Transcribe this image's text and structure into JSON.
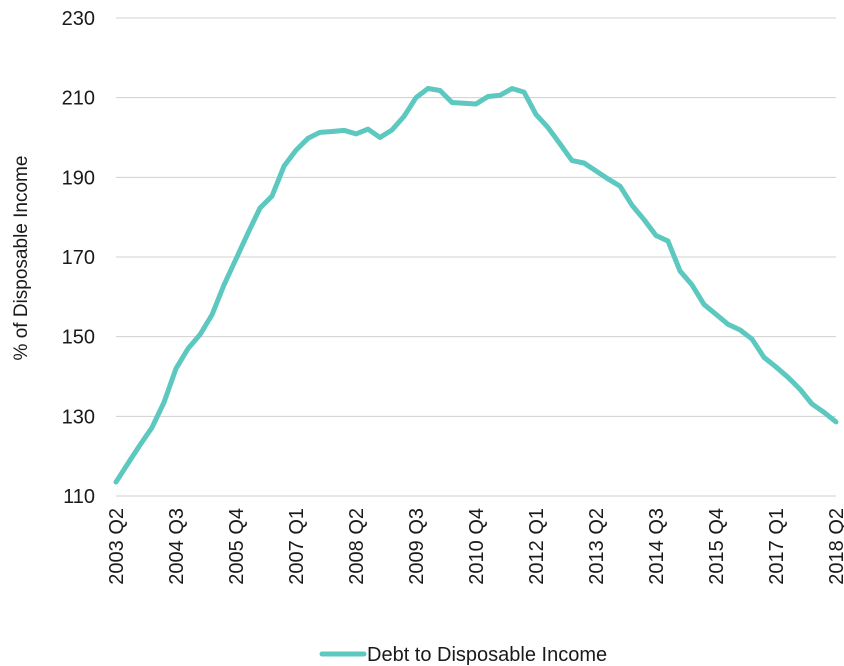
{
  "chart_data": {
    "type": "line",
    "title": "",
    "xlabel": "",
    "ylabel": "% of Disposable Income",
    "ylim": [
      110,
      230
    ],
    "yticks": [
      110,
      130,
      150,
      170,
      190,
      210,
      230
    ],
    "grid": true,
    "legend_position": "bottom-center",
    "x_tick_labels": [
      "2003 Q2",
      "2004 Q3",
      "2005 Q4",
      "2007 Q1",
      "2008 Q2",
      "2009 Q3",
      "2010 Q4",
      "2012 Q1",
      "2013 Q2",
      "2014 Q3",
      "2015 Q4",
      "2017 Q1",
      "2018 Q2"
    ],
    "x": [
      "2003 Q2",
      "2003 Q3",
      "2003 Q4",
      "2004 Q1",
      "2004 Q2",
      "2004 Q3",
      "2004 Q4",
      "2005 Q1",
      "2005 Q2",
      "2005 Q3",
      "2005 Q4",
      "2006 Q1",
      "2006 Q2",
      "2006 Q3",
      "2006 Q4",
      "2007 Q1",
      "2007 Q2",
      "2007 Q3",
      "2007 Q4",
      "2008 Q1",
      "2008 Q2",
      "2008 Q3",
      "2008 Q4",
      "2009 Q1",
      "2009 Q2",
      "2009 Q3",
      "2009 Q4",
      "2010 Q1",
      "2010 Q2",
      "2010 Q3",
      "2010 Q4",
      "2011 Q1",
      "2011 Q2",
      "2011 Q3",
      "2011 Q4",
      "2012 Q1",
      "2012 Q2",
      "2012 Q3",
      "2012 Q4",
      "2013 Q1",
      "2013 Q2",
      "2013 Q3",
      "2013 Q4",
      "2014 Q1",
      "2014 Q2",
      "2014 Q3",
      "2014 Q4",
      "2015 Q1",
      "2015 Q2",
      "2015 Q3",
      "2015 Q4",
      "2016 Q1",
      "2016 Q2",
      "2016 Q3",
      "2016 Q4",
      "2017 Q1",
      "2017 Q2",
      "2017 Q3",
      "2017 Q4",
      "2018 Q1",
      "2018 Q2"
    ],
    "series": [
      {
        "name": "Debt to Disposable Income",
        "color": "#5cc8bf",
        "values": [
          113.5,
          118.2,
          122.8,
          127.2,
          133.5,
          142.0,
          147.0,
          150.5,
          155.5,
          163.0,
          169.5,
          176.0,
          182.3,
          185.3,
          192.8,
          196.8,
          199.8,
          201.3,
          201.5,
          201.8,
          200.9,
          202.1,
          200.0,
          201.9,
          205.3,
          210.0,
          212.3,
          211.8,
          208.8,
          208.6,
          208.4,
          210.3,
          210.6,
          212.3,
          211.4,
          205.8,
          202.5,
          198.4,
          194.2,
          193.6,
          191.6,
          189.6,
          187.8,
          183.0,
          179.4,
          175.4,
          174.0,
          166.5,
          163.0,
          158.1,
          155.6,
          153.1,
          151.7,
          149.4,
          144.8,
          142.4,
          139.8,
          136.8,
          133.1,
          131.0,
          128.6
        ]
      }
    ]
  }
}
